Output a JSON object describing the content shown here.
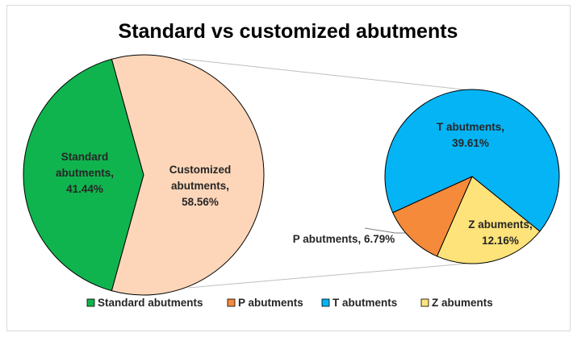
{
  "chart_data": {
    "type": "pie",
    "subtype": "pie-of-pie",
    "title": "Standard vs customized abutments",
    "main_pie": {
      "slices": [
        {
          "name": "Standard abutments",
          "label_lines": [
            "Standard",
            "abutments,",
            "41.44%"
          ],
          "value": 41.44,
          "color": "#10b44e"
        },
        {
          "name": "Customized abutments",
          "label_lines": [
            "Customized",
            "abutments,",
            "58.56%"
          ],
          "value": 58.56,
          "color": "#fdd6b9"
        }
      ]
    },
    "secondary_pie": {
      "slices": [
        {
          "name": "T abutments",
          "label_lines": [
            "T abutments,",
            "39.61%"
          ],
          "value": 39.61,
          "color": "#05b4f5"
        },
        {
          "name": "Z abuments",
          "label_lines": [
            "Z abuments,",
            "12.16%"
          ],
          "value": 12.16,
          "color": "#fde37a"
        },
        {
          "name": "P abutments",
          "label_lines": [
            "P abutments, 6.79%"
          ],
          "value": 6.79,
          "color": "#f58a3a"
        }
      ]
    },
    "legend": {
      "placement": "bottom",
      "entries": [
        {
          "name": "Standard abutments",
          "color": "#10b44e"
        },
        {
          "name": "P abutments",
          "color": "#f58a3a"
        },
        {
          "name": "T abutments",
          "color": "#05b4f5"
        },
        {
          "name": "Z abuments",
          "color": "#fde37a"
        }
      ]
    },
    "outline_color": "#000000",
    "connector_color": "#bfbfbf"
  }
}
